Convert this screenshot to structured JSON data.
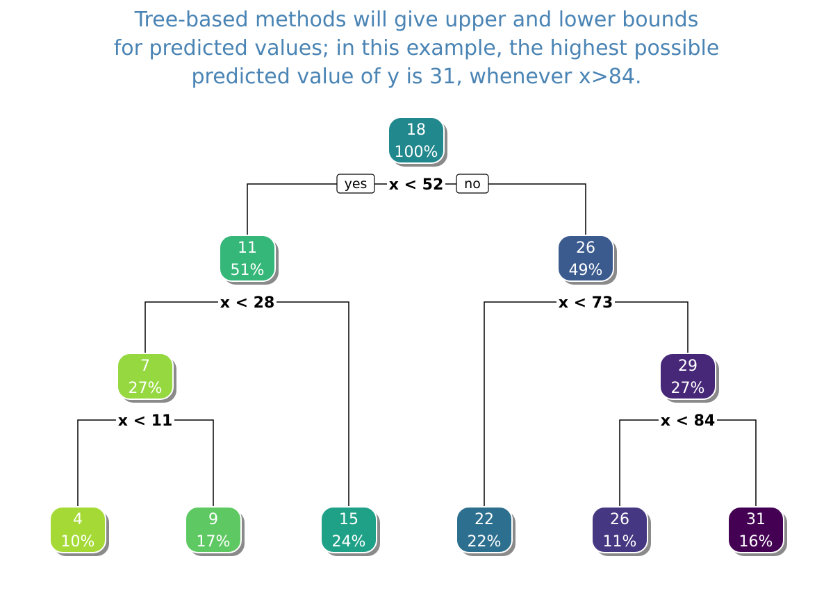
{
  "title": {
    "line1": "Tree-based methods will give upper and lower bounds",
    "line2": "for predicted values; in this example, the highest possible",
    "line3": "predicted value of y is 31, whenever x>84."
  },
  "branch_labels": {
    "yes": "yes",
    "no": "no"
  },
  "nodes": [
    {
      "id": "n1",
      "value": "18",
      "pct": "100%",
      "color": "#21888d"
    },
    {
      "id": "n2",
      "value": "11",
      "pct": "51%",
      "color": "#35b779"
    },
    {
      "id": "n3",
      "value": "26",
      "pct": "49%",
      "color": "#3b5b8f"
    },
    {
      "id": "n4",
      "value": "7",
      "pct": "27%",
      "color": "#95d840"
    },
    {
      "id": "n5",
      "value": "29",
      "pct": "27%",
      "color": "#472878"
    },
    {
      "id": "n8",
      "value": "4",
      "pct": "10%",
      "color": "#a5da36"
    },
    {
      "id": "n9",
      "value": "9",
      "pct": "17%",
      "color": "#5ec962"
    },
    {
      "id": "n10",
      "value": "15",
      "pct": "24%",
      "color": "#1fa187"
    },
    {
      "id": "n11",
      "value": "22",
      "pct": "22%",
      "color": "#2c6f8e"
    },
    {
      "id": "n12",
      "value": "26",
      "pct": "11%",
      "color": "#453781"
    },
    {
      "id": "n13",
      "value": "31",
      "pct": "16%",
      "color": "#440154"
    }
  ],
  "splits": [
    {
      "id": "s1",
      "label": "x < 52"
    },
    {
      "id": "s2",
      "label": "x < 28"
    },
    {
      "id": "s3",
      "label": "x < 73"
    },
    {
      "id": "s4",
      "label": "x < 11"
    },
    {
      "id": "s5",
      "label": "x < 84"
    }
  ]
}
